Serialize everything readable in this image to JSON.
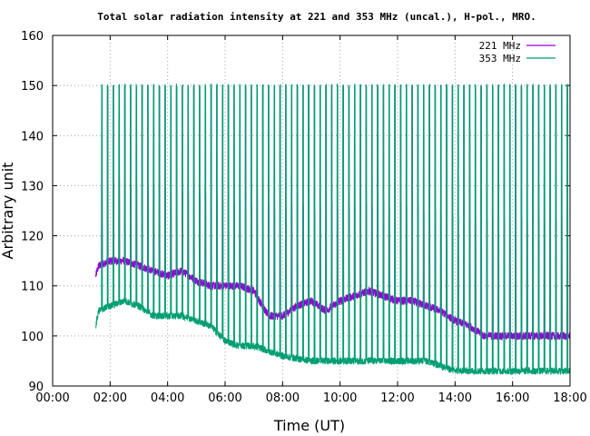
{
  "chart_data": {
    "type": "line",
    "title": "Total solar radiation intensity at 221 and 353 MHz (uncal.), H-pol., MRO.",
    "xlabel": "Time (UT)",
    "ylabel": "Arbitrary unit",
    "xlim": [
      0,
      18
    ],
    "ylim": [
      90,
      160
    ],
    "x_ticks": [
      "00:00",
      "02:00",
      "04:00",
      "06:00",
      "08:00",
      "10:00",
      "12:00",
      "14:00",
      "16:00",
      "18:00"
    ],
    "y_ticks": [
      "90",
      "100",
      "110",
      "120",
      "130",
      "140",
      "150",
      "160"
    ],
    "grid": true,
    "legend_position": "top-right",
    "x_start_hours": 1.5,
    "x_end_hours": 18.0,
    "calibration_pulses": {
      "interval_hours": 0.2,
      "level": 150,
      "duration_hours": 0.025
    },
    "series": [
      {
        "name": "221 MHz",
        "color": "#9400d3",
        "baseline": {
          "x": [
            1.5,
            1.6,
            2.0,
            2.5,
            3.0,
            3.5,
            4.0,
            4.5,
            5.0,
            5.5,
            6.0,
            6.5,
            7.0,
            7.5,
            8.0,
            8.5,
            9.0,
            9.5,
            10.0,
            10.5,
            11.0,
            11.5,
            12.0,
            12.5,
            13.0,
            13.5,
            14.0,
            14.5,
            15.0,
            15.5,
            16.0,
            16.5,
            17.0,
            17.5,
            18.0
          ],
          "y": [
            112,
            114,
            115,
            115,
            114,
            113,
            112,
            113,
            111,
            110,
            110,
            110,
            109,
            104,
            104,
            106,
            107,
            105,
            107,
            108,
            109,
            108,
            107,
            107,
            106,
            105,
            103,
            102,
            100,
            100,
            100,
            100,
            100,
            100,
            100
          ]
        },
        "pulse_level": {
          "x": [
            1.6,
            2.0,
            3.0,
            4.0,
            5.0,
            6.0,
            7.0,
            8.0,
            9.0,
            10.0,
            11.0,
            12.0,
            13.0,
            14.0,
            15.0,
            16.0,
            17.0,
            18.0
          ],
          "y": [
            129,
            131,
            130,
            129,
            128,
            127,
            127,
            126,
            125,
            126,
            126,
            126,
            125,
            124,
            123,
            123,
            123,
            123
          ]
        }
      },
      {
        "name": "353 MHz",
        "color": "#009e73",
        "baseline": {
          "x": [
            1.5,
            1.6,
            2.0,
            2.5,
            3.0,
            3.5,
            4.0,
            4.5,
            5.0,
            5.5,
            6.0,
            6.5,
            7.0,
            7.5,
            8.0,
            8.5,
            9.0,
            9.5,
            10.0,
            10.5,
            11.0,
            11.5,
            12.0,
            12.5,
            13.0,
            13.5,
            14.0,
            14.5,
            15.0,
            15.5,
            16.0,
            16.5,
            17.0,
            17.5,
            18.0
          ],
          "y": [
            102,
            105,
            106,
            107,
            106,
            104,
            104,
            104,
            103,
            102,
            99,
            98,
            98,
            97,
            96,
            95.5,
            95,
            95,
            95,
            95,
            95,
            95,
            95,
            95,
            95,
            94,
            93,
            93,
            93,
            93,
            93,
            93,
            93,
            93,
            93
          ]
        }
      }
    ]
  }
}
